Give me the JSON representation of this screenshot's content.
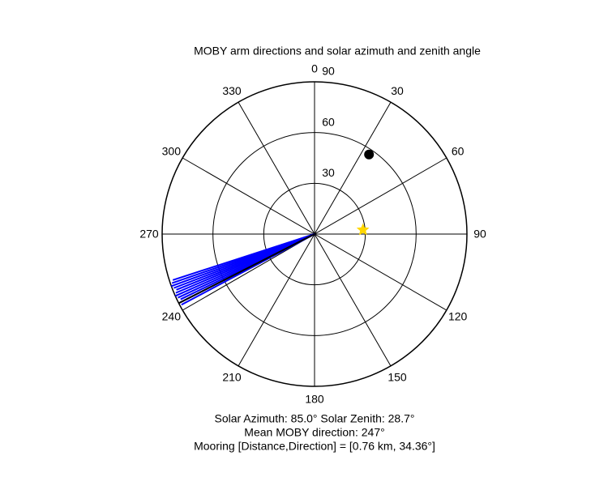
{
  "chart_data": {
    "type": "polar",
    "title": "MOBY arm directions and solar azimuth and zenith angle",
    "annotations": [
      "Solar Azimuth: 85.0°   Solar Zenith: 28.7°",
      "Mean MOBY direction: 247°",
      "Mooring [Distance,Direction] = [0.76 km, 34.36°]"
    ],
    "rlim": [
      0,
      90
    ],
    "rticks": [
      30,
      60,
      90
    ],
    "thetaticks": [
      0,
      30,
      60,
      90,
      120,
      150,
      180,
      210,
      240,
      270,
      300,
      330
    ],
    "series": [
      {
        "mode": "line",
        "color": "#0000ff",
        "theta": [
          242,
          243,
          244,
          245,
          246,
          247,
          248,
          249,
          250,
          251,
          252
        ],
        "r": [
          89,
          89,
          88,
          89,
          90,
          89,
          88,
          89,
          90,
          89,
          88
        ]
      },
      {
        "mode": "line",
        "color": "#000000",
        "theta": [
          243
        ],
        "r": [
          90
        ]
      },
      {
        "mode": "marker",
        "marker": "circle",
        "color": "#000000",
        "theta": [
          34.36
        ],
        "r": [
          57
        ]
      },
      {
        "mode": "marker",
        "marker": "star",
        "color": "#ffd700",
        "theta": [
          85
        ],
        "r": [
          28.7
        ]
      }
    ]
  }
}
